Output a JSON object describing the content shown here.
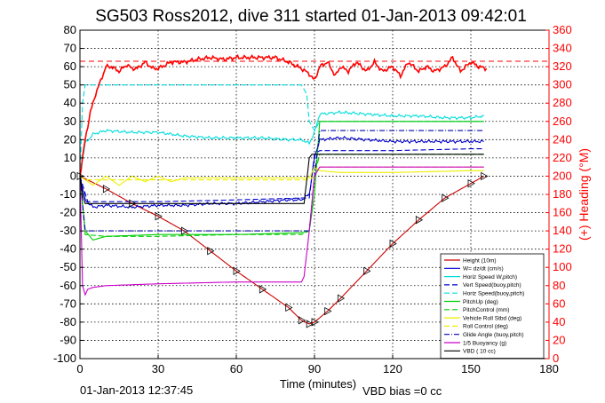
{
  "chart_data": {
    "type": "line",
    "title": "SG503 Ross2012, dive 311 started 01-Jan-2013 09:42:01",
    "xlabel": "Time (minutes)",
    "ylabel_right": "(+) Heading (°M)",
    "xlim": [
      0,
      180
    ],
    "ylim_left": [
      -100,
      80
    ],
    "ylim_right": [
      0,
      360
    ],
    "xticks": [
      0,
      30,
      60,
      90,
      120,
      150,
      180
    ],
    "yticks_left": [
      -100,
      -90,
      -80,
      -70,
      -60,
      -50,
      -40,
      -30,
      -20,
      -10,
      0,
      10,
      20,
      30,
      40,
      50,
      60,
      70,
      80
    ],
    "yticks_right": [
      0,
      20,
      40,
      60,
      80,
      100,
      120,
      140,
      160,
      180,
      200,
      220,
      240,
      260,
      280,
      300,
      320,
      340,
      360
    ],
    "grid": true,
    "legend_position": "bottom-right",
    "footer_left": "01-Jan-2013 12:37:45",
    "footer_right": "VBD bias =0 cc",
    "colors": {
      "heading": "#ff0000",
      "axis_right": "#ff0000",
      "height": "#cc0000",
      "w": "#0000cc",
      "horz_speed": "#00cccc",
      "pitch": "#00cc00",
      "roll": "#dddd00",
      "glide": "#0000aa",
      "buoyancy": "#cc00cc",
      "vbd": "#000000"
    },
    "heading_target": 63,
    "series": [
      {
        "name": "Height (10m)",
        "color": "#cc0000",
        "style": "solid",
        "marker": "triangle",
        "x": [
          0,
          10,
          20,
          30,
          40,
          50,
          60,
          70,
          80,
          85,
          88,
          90,
          95,
          100,
          110,
          120,
          130,
          140,
          150,
          155
        ],
        "y": [
          0,
          -7,
          -15,
          -22,
          -30,
          -41,
          -52,
          -62,
          -72,
          -79,
          -81,
          -80,
          -74,
          -67,
          -52,
          -37,
          -24,
          -12,
          -4,
          0
        ]
      },
      {
        "name": "W= dz/dt (cm/s)",
        "color": "#0000cc",
        "style": "solid",
        "x": [
          0,
          2,
          5,
          10,
          20,
          30,
          40,
          50,
          60,
          70,
          80,
          85,
          88,
          90,
          92,
          100,
          110,
          120,
          130,
          140,
          150,
          155
        ],
        "y": [
          0,
          -13,
          -17,
          -16,
          -17,
          -16,
          -16,
          -15,
          -15,
          -14,
          -13,
          -13,
          -10,
          10,
          20,
          21,
          20,
          19,
          19,
          19,
          19,
          19
        ]
      },
      {
        "name": "Horiz Speed W,pitch)",
        "color": "#00dddd",
        "style": "solid",
        "x": [
          0,
          2,
          5,
          10,
          20,
          30,
          40,
          50,
          60,
          70,
          80,
          85,
          88,
          90,
          92,
          100,
          110,
          120,
          130,
          140,
          150,
          155
        ],
        "y": [
          0,
          18,
          23,
          25,
          24,
          24,
          22,
          21,
          21,
          21,
          20,
          20,
          18,
          24,
          34,
          35,
          34,
          33,
          33,
          32,
          32,
          33
        ]
      },
      {
        "name": "Vert Speed(buoy,pitch)",
        "color": "#0000cc",
        "style": "dashed",
        "x": [
          0,
          3,
          10,
          30,
          60,
          85,
          88,
          90,
          92,
          120,
          150,
          155
        ],
        "y": [
          0,
          -14,
          -14,
          -14,
          -13,
          -12,
          -12,
          12,
          14,
          14,
          15,
          15
        ]
      },
      {
        "name": "Horiz Speed(buoy,pitch)",
        "color": "#00dddd",
        "style": "dashed",
        "x": [
          0,
          1,
          2,
          10,
          30,
          60,
          85,
          87,
          88,
          90,
          92,
          120,
          150,
          155
        ],
        "y": [
          0,
          40,
          50,
          50,
          50,
          50,
          50,
          45,
          30,
          25,
          30,
          30,
          30,
          30
        ]
      },
      {
        "name": "PitchUp (deg)",
        "color": "#00cc00",
        "style": "solid",
        "x": [
          0,
          2,
          5,
          10,
          30,
          60,
          85,
          88,
          90,
          92,
          120,
          150,
          155
        ],
        "y": [
          0,
          -30,
          -35,
          -33,
          -32,
          -32,
          -31,
          -30,
          -10,
          30,
          30,
          30,
          30
        ]
      },
      {
        "name": "PitchControl (mm)",
        "color": "#00cc00",
        "style": "dashed",
        "x": [
          0,
          2,
          10,
          30,
          60,
          85,
          88,
          90,
          92,
          120,
          150,
          155
        ],
        "y": [
          0,
          -32,
          -33,
          -33,
          -32,
          -32,
          -30,
          0,
          12,
          12,
          12,
          12
        ]
      },
      {
        "name": "Vehicle Roll Stbd (deg)",
        "color": "#eeee00",
        "style": "solid",
        "x": [
          0,
          5,
          10,
          15,
          20,
          25,
          30,
          35,
          40,
          60,
          85,
          88,
          90,
          92,
          100,
          120,
          150,
          155
        ],
        "y": [
          0,
          -5,
          0,
          -5,
          0,
          -3,
          0,
          -3,
          -1,
          -1,
          -1,
          -1,
          5,
          3,
          2,
          2,
          3,
          3
        ]
      },
      {
        "name": "Roll Control (deg)",
        "color": "#eeee00",
        "style": "dashed",
        "x": [
          0,
          2,
          10,
          30,
          60,
          85,
          88,
          90,
          92,
          120,
          150,
          155
        ],
        "y": [
          0,
          -2,
          -2,
          -2,
          -2,
          -2,
          -2,
          0,
          5,
          5,
          5,
          5
        ]
      },
      {
        "name": "Glide Angle (buoy,pitch)",
        "color": "#0000aa",
        "style": "dashdot",
        "x": [
          0,
          2,
          10,
          30,
          60,
          85,
          88,
          90,
          92,
          120,
          150,
          155
        ],
        "y": [
          0,
          -30,
          -30,
          -30,
          -30,
          -30,
          -30,
          0,
          25,
          25,
          25,
          25
        ]
      },
      {
        "name": "1/5 Buoyancy (g)",
        "color": "#cc00cc",
        "style": "solid",
        "x": [
          0,
          1,
          2,
          3,
          5,
          10,
          30,
          60,
          85,
          86,
          88,
          90,
          92,
          120,
          150,
          155
        ],
        "y": [
          0,
          -60,
          -65,
          -62,
          -61,
          -60,
          -59,
          -58,
          -58,
          -55,
          -30,
          0,
          5,
          5,
          5,
          5
        ]
      },
      {
        "name": "VBD ( 10 cc)",
        "color": "#000000",
        "style": "solid",
        "x": [
          0,
          1,
          2,
          10,
          30,
          60,
          85,
          86,
          88,
          89,
          90,
          92,
          120,
          150,
          155
        ],
        "y": [
          0,
          -10,
          -15,
          -15,
          -15,
          -15,
          -15,
          -15,
          10,
          12,
          12,
          12,
          12,
          12,
          12
        ]
      },
      {
        "name": "",
        "color": "#ff0000",
        "style": "solid",
        "axis": "right",
        "x": [
          0,
          2,
          4,
          6,
          8,
          10,
          12,
          15,
          18,
          20,
          22,
          25,
          28,
          30,
          35,
          40,
          45,
          50,
          55,
          60,
          65,
          70,
          75,
          80,
          85,
          88,
          90,
          92,
          95,
          98,
          100,
          103,
          106,
          110,
          113,
          116,
          120,
          123,
          126,
          130,
          133,
          136,
          140,
          143,
          146,
          150,
          153,
          156
        ],
        "y": [
          200,
          240,
          270,
          290,
          305,
          320,
          320,
          315,
          322,
          318,
          318,
          325,
          318,
          318,
          325,
          325,
          328,
          330,
          328,
          330,
          330,
          330,
          330,
          325,
          318,
          312,
          305,
          320,
          325,
          310,
          320,
          315,
          325,
          315,
          325,
          315,
          320,
          310,
          325,
          315,
          320,
          315,
          320,
          330,
          315,
          325,
          320,
          318
        ]
      }
    ]
  }
}
